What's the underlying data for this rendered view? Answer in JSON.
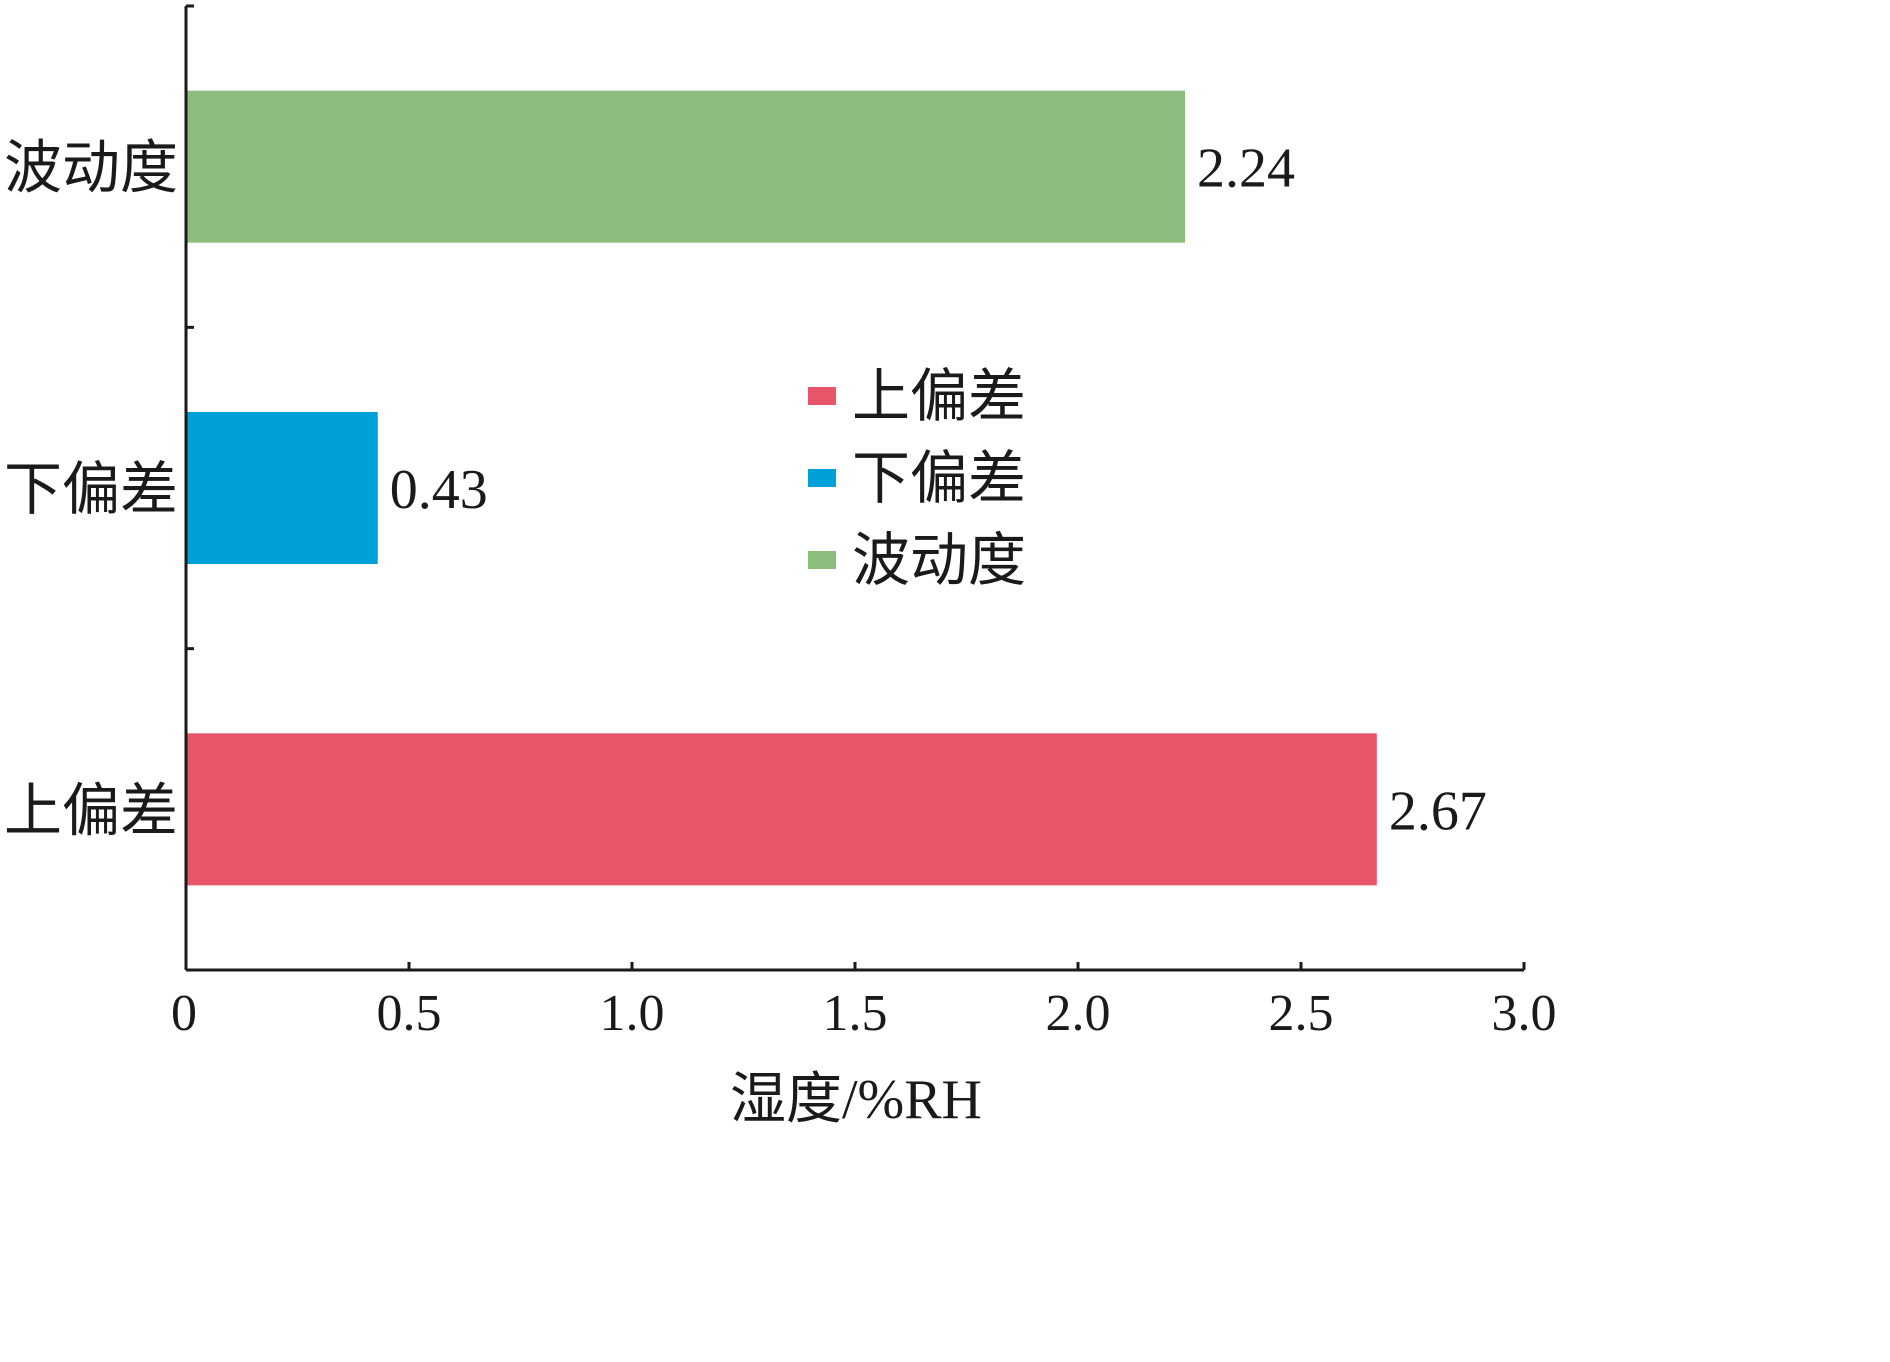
{
  "chart_data": {
    "type": "bar",
    "orientation": "horizontal",
    "categories": [
      "上偏差",
      "下偏差",
      "波动度"
    ],
    "values": [
      2.67,
      0.43,
      2.24
    ],
    "value_labels": [
      "2.67",
      "0.43",
      "2.24"
    ],
    "colors": [
      "#e8546a",
      "#00a0d8",
      "#8bbe7c"
    ],
    "xlabel": "湿度/%RH",
    "ylabel": "",
    "xlim": [
      0,
      3.0
    ],
    "xticks": [
      0,
      0.5,
      1.0,
      1.5,
      2.0,
      2.5,
      3.0
    ],
    "xtick_labels": [
      "0",
      "0.5",
      "1.0",
      "1.5",
      "2.0",
      "2.5",
      "3.0"
    ],
    "grid": false,
    "legend": {
      "position": "center-right",
      "entries": [
        {
          "label": "上偏差",
          "color": "#e8546a"
        },
        {
          "label": "下偏差",
          "color": "#00a0d8"
        },
        {
          "label": "波动度",
          "color": "#8bbe7c"
        }
      ]
    }
  }
}
